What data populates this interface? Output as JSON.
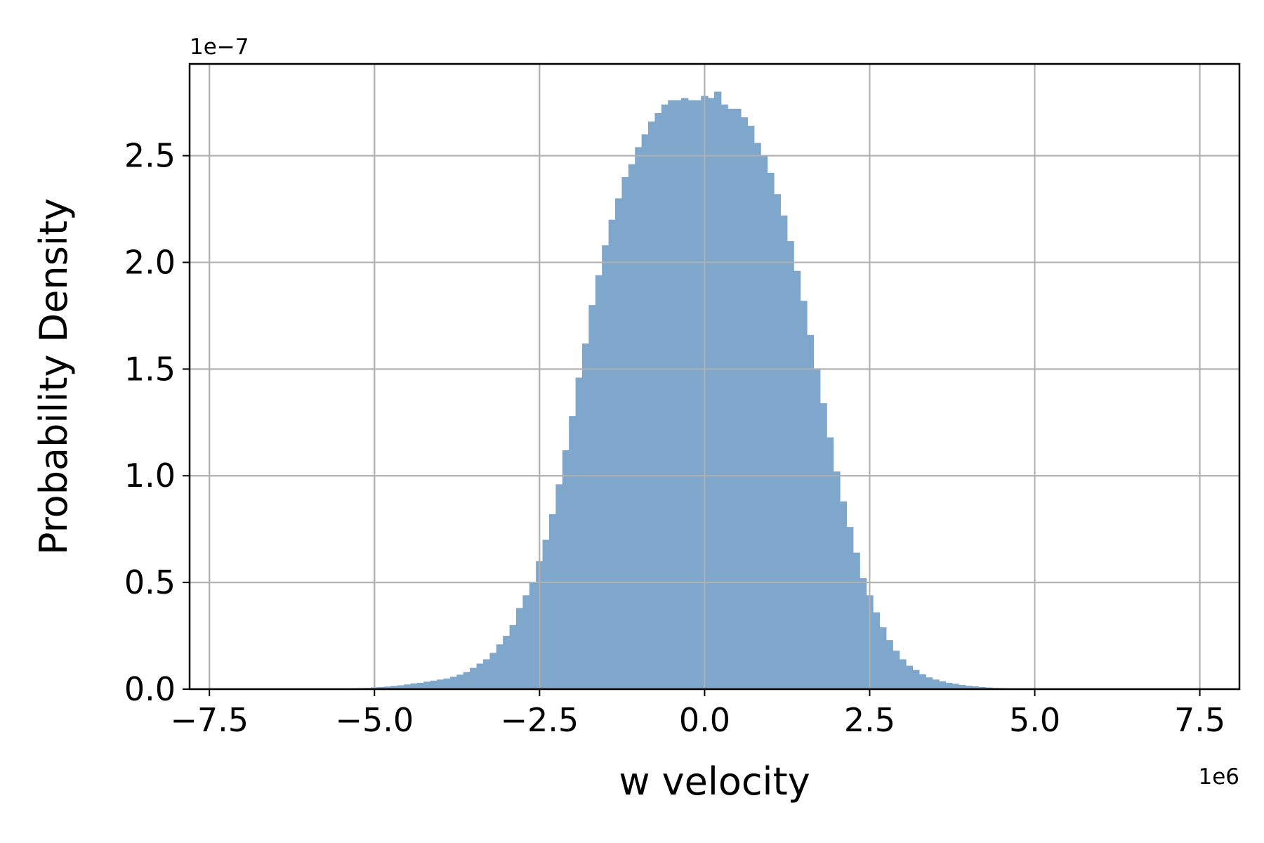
{
  "chart_data": {
    "type": "bar",
    "histogram": true,
    "xlabel": "w velocity",
    "ylabel": "Probability Density",
    "x_offset_label": "1e6",
    "y_offset_label": "1e−7",
    "xlim": [
      -7.8,
      8.1
    ],
    "ylim": [
      0,
      2.93
    ],
    "grid": true,
    "bar_color": "#7ea7cb",
    "grid_color": "#b0b0b0",
    "xticks": [
      -7.5,
      -5.0,
      -2.5,
      0.0,
      2.5,
      5.0,
      7.5
    ],
    "xtick_labels": [
      "−7.5",
      "−5.0",
      "−2.5",
      "0.0",
      "2.5",
      "5.0",
      "7.5"
    ],
    "yticks": [
      0.0,
      0.5,
      1.0,
      1.5,
      2.0,
      2.5
    ],
    "ytick_labels": [
      "0.0",
      "0.5",
      "1.0",
      "1.5",
      "2.0",
      "2.5"
    ],
    "bin_width": 0.11,
    "bin_centers": [
      -5.5,
      -5.4,
      -5.3,
      -5.2,
      -5.1,
      -5.0,
      -4.9,
      -4.8,
      -4.7,
      -4.6,
      -4.5,
      -4.4,
      -4.3,
      -4.2,
      -4.1,
      -4.0,
      -3.9,
      -3.8,
      -3.7,
      -3.6,
      -3.5,
      -3.4,
      -3.3,
      -3.2,
      -3.1,
      -3.0,
      -2.9,
      -2.8,
      -2.7,
      -2.6,
      -2.5,
      -2.4,
      -2.3,
      -2.2,
      -2.1,
      -2.0,
      -1.9,
      -1.8,
      -1.7,
      -1.6,
      -1.5,
      -1.4,
      -1.3,
      -1.2,
      -1.1,
      -1.0,
      -0.9,
      -0.8,
      -0.7,
      -0.6,
      -0.5,
      -0.4,
      -0.3,
      -0.2,
      -0.1,
      0.0,
      0.1,
      0.2,
      0.3,
      0.4,
      0.5,
      0.6,
      0.7,
      0.8,
      0.9,
      1.0,
      1.1,
      1.2,
      1.3,
      1.4,
      1.5,
      1.6,
      1.7,
      1.8,
      1.9,
      2.0,
      2.1,
      2.2,
      2.3,
      2.4,
      2.5,
      2.6,
      2.7,
      2.8,
      2.9,
      3.0,
      3.1,
      3.2,
      3.3,
      3.4,
      3.5,
      3.6,
      3.7,
      3.8,
      3.9,
      4.0,
      4.1,
      4.2,
      4.3,
      4.4,
      4.5,
      4.6,
      4.7,
      4.8,
      4.9,
      5.0,
      5.1,
      5.2,
      5.3,
      5.4,
      5.5
    ],
    "densities": [
      0.002,
      0.003,
      0.004,
      0.005,
      0.006,
      0.008,
      0.01,
      0.012,
      0.015,
      0.018,
      0.022,
      0.027,
      0.03,
      0.035,
      0.04,
      0.045,
      0.05,
      0.058,
      0.068,
      0.08,
      0.1,
      0.12,
      0.14,
      0.17,
      0.21,
      0.25,
      0.3,
      0.38,
      0.44,
      0.5,
      0.6,
      0.7,
      0.82,
      0.96,
      1.12,
      1.28,
      1.46,
      1.62,
      1.8,
      1.94,
      2.08,
      2.2,
      2.3,
      2.4,
      2.46,
      2.54,
      2.6,
      2.66,
      2.7,
      2.74,
      2.76,
      2.76,
      2.77,
      2.76,
      2.76,
      2.78,
      2.77,
      2.8,
      2.74,
      2.72,
      2.72,
      2.68,
      2.64,
      2.56,
      2.5,
      2.42,
      2.32,
      2.22,
      2.1,
      1.96,
      1.82,
      1.66,
      1.5,
      1.34,
      1.18,
      1.02,
      0.88,
      0.76,
      0.64,
      0.52,
      0.44,
      0.36,
      0.29,
      0.23,
      0.18,
      0.14,
      0.11,
      0.09,
      0.07,
      0.055,
      0.045,
      0.037,
      0.03,
      0.025,
      0.02,
      0.016,
      0.013,
      0.01,
      0.008,
      0.006,
      0.005,
      0.004,
      0.003,
      0.002,
      0.0015,
      0.001,
      0.0008,
      0.0006,
      0.0004,
      0.0003,
      0.0002
    ]
  }
}
